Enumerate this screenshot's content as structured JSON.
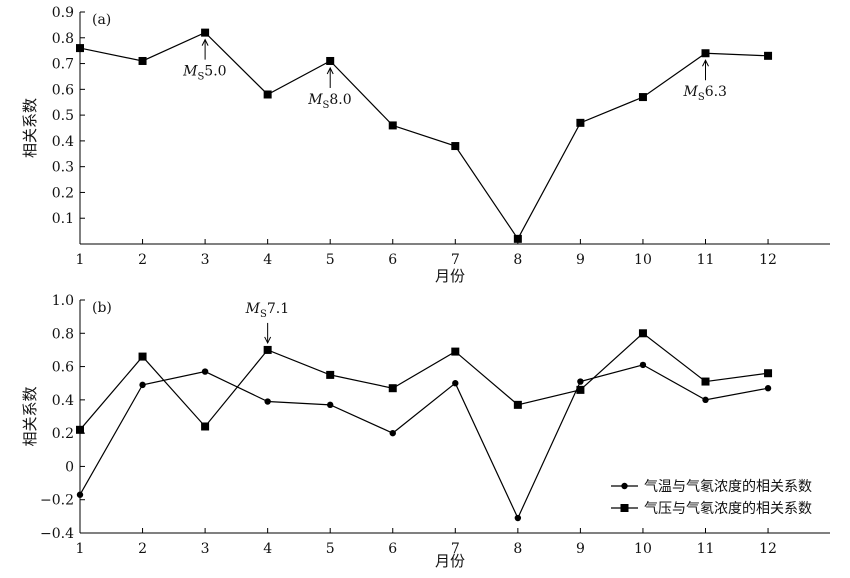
{
  "chart_data": [
    {
      "type": "line",
      "panel_label": "(a)",
      "xlabel": "月份",
      "ylabel": "相关系数",
      "xlim": [
        1,
        13
      ],
      "ylim": [
        0,
        0.9
      ],
      "x_ticks": [
        1,
        2,
        3,
        4,
        5,
        6,
        7,
        8,
        9,
        10,
        11,
        12
      ],
      "y_ticks": [
        0.1,
        0.2,
        0.3,
        0.4,
        0.5,
        0.6,
        0.7,
        0.8,
        0.9
      ],
      "y_tick_labels": [
        "0.1",
        "0.2",
        "0.3",
        "0.4",
        "0.5",
        "0.6",
        "0.7",
        "0.8",
        "0.9"
      ],
      "grid": false,
      "series": [
        {
          "marker": "square",
          "x": [
            1,
            2,
            3,
            4,
            5,
            6,
            7,
            8,
            9,
            10,
            11,
            12
          ],
          "values": [
            0.76,
            0.71,
            0.82,
            0.58,
            0.71,
            0.46,
            0.38,
            0.02,
            0.47,
            0.57,
            0.74,
            0.73
          ]
        }
      ],
      "annotations": [
        {
          "x": 3,
          "y": 0.82,
          "main": "M",
          "sub": "S",
          "value": "5.0"
        },
        {
          "x": 5,
          "y": 0.71,
          "main": "M",
          "sub": "S",
          "value": "8.0"
        },
        {
          "x": 11,
          "y": 0.74,
          "main": "M",
          "sub": "S",
          "value": "6.3"
        }
      ]
    },
    {
      "type": "line",
      "panel_label": "(b)",
      "xlabel": "月份",
      "ylabel": "相关系数",
      "xlim": [
        1,
        13
      ],
      "ylim": [
        -0.4,
        1.0
      ],
      "x_ticks": [
        1,
        2,
        3,
        4,
        5,
        6,
        7,
        8,
        9,
        10,
        11,
        12
      ],
      "y_ticks": [
        -0.4,
        -0.2,
        0,
        0.2,
        0.4,
        0.6,
        0.8,
        1.0
      ],
      "y_tick_labels": [
        "−0.4",
        "−0.2",
        "0",
        "0.2",
        "0.4",
        "0.6",
        "0.8",
        "1.0"
      ],
      "grid": false,
      "legend_position": "bottom-right",
      "series": [
        {
          "name": "气温与气氡浓度的相关系数",
          "marker": "circle",
          "x": [
            1,
            2,
            3,
            4,
            5,
            6,
            7,
            8,
            9,
            10,
            11,
            12
          ],
          "values": [
            -0.17,
            0.49,
            0.57,
            0.39,
            0.37,
            0.2,
            0.5,
            -0.31,
            0.51,
            0.61,
            0.4,
            0.47
          ]
        },
        {
          "name": "气压与气氡浓度的相关系数",
          "marker": "square",
          "x": [
            1,
            2,
            3,
            4,
            5,
            6,
            7,
            8,
            9,
            10,
            11,
            12
          ],
          "values": [
            0.22,
            0.66,
            0.24,
            0.7,
            0.55,
            0.47,
            0.69,
            0.37,
            0.46,
            0.8,
            0.51,
            0.56
          ]
        }
      ],
      "annotations": [
        {
          "x": 4,
          "y": 0.7,
          "main": "M",
          "sub": "S",
          "value": "7.1"
        }
      ]
    }
  ]
}
